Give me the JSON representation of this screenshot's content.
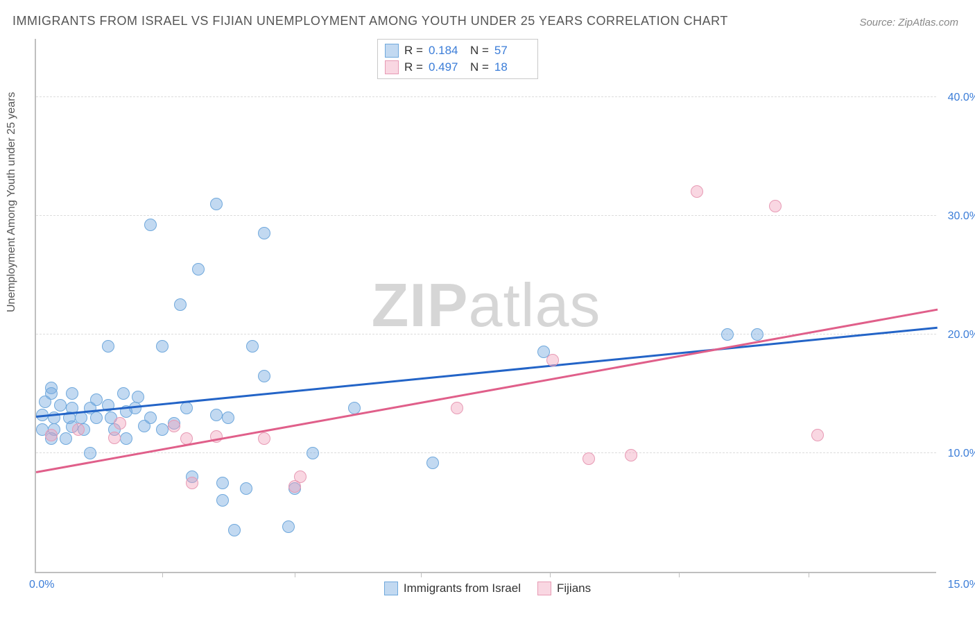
{
  "title": "IMMIGRANTS FROM ISRAEL VS FIJIAN UNEMPLOYMENT AMONG YOUTH UNDER 25 YEARS CORRELATION CHART",
  "source": "Source: ZipAtlas.com",
  "ylabel": "Unemployment Among Youth under 25 years",
  "watermark_bold": "ZIP",
  "watermark_rest": "atlas",
  "chart": {
    "type": "scatter",
    "xlim": [
      0,
      15
    ],
    "ylim": [
      0,
      45
    ],
    "ytick_values": [
      10,
      20,
      30,
      40
    ],
    "ytick_labels": [
      "10.0%",
      "20.0%",
      "30.0%",
      "40.0%"
    ],
    "xtick_left": "0.0%",
    "xtick_right": "15.0%",
    "xtick_positions": [
      2.1,
      4.3,
      6.4,
      8.55,
      10.7,
      12.85
    ],
    "background_color": "#ffffff",
    "grid_color": "#dcdcdc",
    "axis_color": "#bfbfbf",
    "tick_label_color": "#3b7dd8",
    "point_radius": 9,
    "series": [
      {
        "name": "Immigrants from Israel",
        "fill": "rgba(120,170,225,0.45)",
        "stroke": "#6fa8dc",
        "trend_color": "#2364c7",
        "trend": {
          "x1": 0,
          "y1": 13.0,
          "x2": 15,
          "y2": 20.5
        },
        "R": "0.184",
        "N": "57",
        "points": [
          [
            3.0,
            31.0
          ],
          [
            1.9,
            29.2
          ],
          [
            2.7,
            25.5
          ],
          [
            2.4,
            22.5
          ],
          [
            3.8,
            28.5
          ],
          [
            1.2,
            19.0
          ],
          [
            2.1,
            19.0
          ],
          [
            3.6,
            19.0
          ],
          [
            0.25,
            15.5
          ],
          [
            0.25,
            15.0
          ],
          [
            0.6,
            15.0
          ],
          [
            1.45,
            15.0
          ],
          [
            0.6,
            13.8
          ],
          [
            0.9,
            13.8
          ],
          [
            1.2,
            14.0
          ],
          [
            1.65,
            13.8
          ],
          [
            2.5,
            13.8
          ],
          [
            3.8,
            16.5
          ],
          [
            0.1,
            13.2
          ],
          [
            0.3,
            13.0
          ],
          [
            0.55,
            13.0
          ],
          [
            0.75,
            13.0
          ],
          [
            1.0,
            13.0
          ],
          [
            1.25,
            13.0
          ],
          [
            1.5,
            13.5
          ],
          [
            1.9,
            13.0
          ],
          [
            3.0,
            13.2
          ],
          [
            0.1,
            12.0
          ],
          [
            0.3,
            12.0
          ],
          [
            0.6,
            12.2
          ],
          [
            0.8,
            12.0
          ],
          [
            1.3,
            12.0
          ],
          [
            2.1,
            12.0
          ],
          [
            5.3,
            13.8
          ],
          [
            0.25,
            11.2
          ],
          [
            0.5,
            11.2
          ],
          [
            1.5,
            11.2
          ],
          [
            0.9,
            10.0
          ],
          [
            4.6,
            10.0
          ],
          [
            2.6,
            8.0
          ],
          [
            3.1,
            7.5
          ],
          [
            3.5,
            7.0
          ],
          [
            3.1,
            6.0
          ],
          [
            4.3,
            7.0
          ],
          [
            3.3,
            3.5
          ],
          [
            4.2,
            3.8
          ],
          [
            6.6,
            9.2
          ],
          [
            8.45,
            18.5
          ],
          [
            11.5,
            20.0
          ],
          [
            12.0,
            20.0
          ],
          [
            0.15,
            14.3
          ],
          [
            1.0,
            14.5
          ],
          [
            1.7,
            14.7
          ],
          [
            2.3,
            12.5
          ],
          [
            0.4,
            14.0
          ],
          [
            1.8,
            12.3
          ],
          [
            3.2,
            13.0
          ]
        ]
      },
      {
        "name": "Fijians",
        "fill": "rgba(240,160,185,0.42)",
        "stroke": "#e79ab4",
        "trend_color": "#e05f8a",
        "trend": {
          "x1": 0,
          "y1": 8.3,
          "x2": 15,
          "y2": 22.0
        },
        "R": "0.497",
        "N": "18",
        "points": [
          [
            0.25,
            11.5
          ],
          [
            1.3,
            11.3
          ],
          [
            1.4,
            12.5
          ],
          [
            2.3,
            12.3
          ],
          [
            2.5,
            11.2
          ],
          [
            3.0,
            11.4
          ],
          [
            2.6,
            7.5
          ],
          [
            3.8,
            11.2
          ],
          [
            4.4,
            8.0
          ],
          [
            4.3,
            7.2
          ],
          [
            7.0,
            13.8
          ],
          [
            8.6,
            17.8
          ],
          [
            9.2,
            9.5
          ],
          [
            9.9,
            9.8
          ],
          [
            11.0,
            32.0
          ],
          [
            12.3,
            30.8
          ],
          [
            13.0,
            11.5
          ],
          [
            0.7,
            12.0
          ]
        ]
      }
    ]
  },
  "legend_top": [
    {
      "series": 0,
      "R_label": "R  =",
      "N_label": "N  ="
    },
    {
      "series": 1,
      "R_label": "R  =",
      "N_label": "N  ="
    }
  ],
  "legend_bottom": [
    {
      "series": 0
    },
    {
      "series": 1
    }
  ]
}
